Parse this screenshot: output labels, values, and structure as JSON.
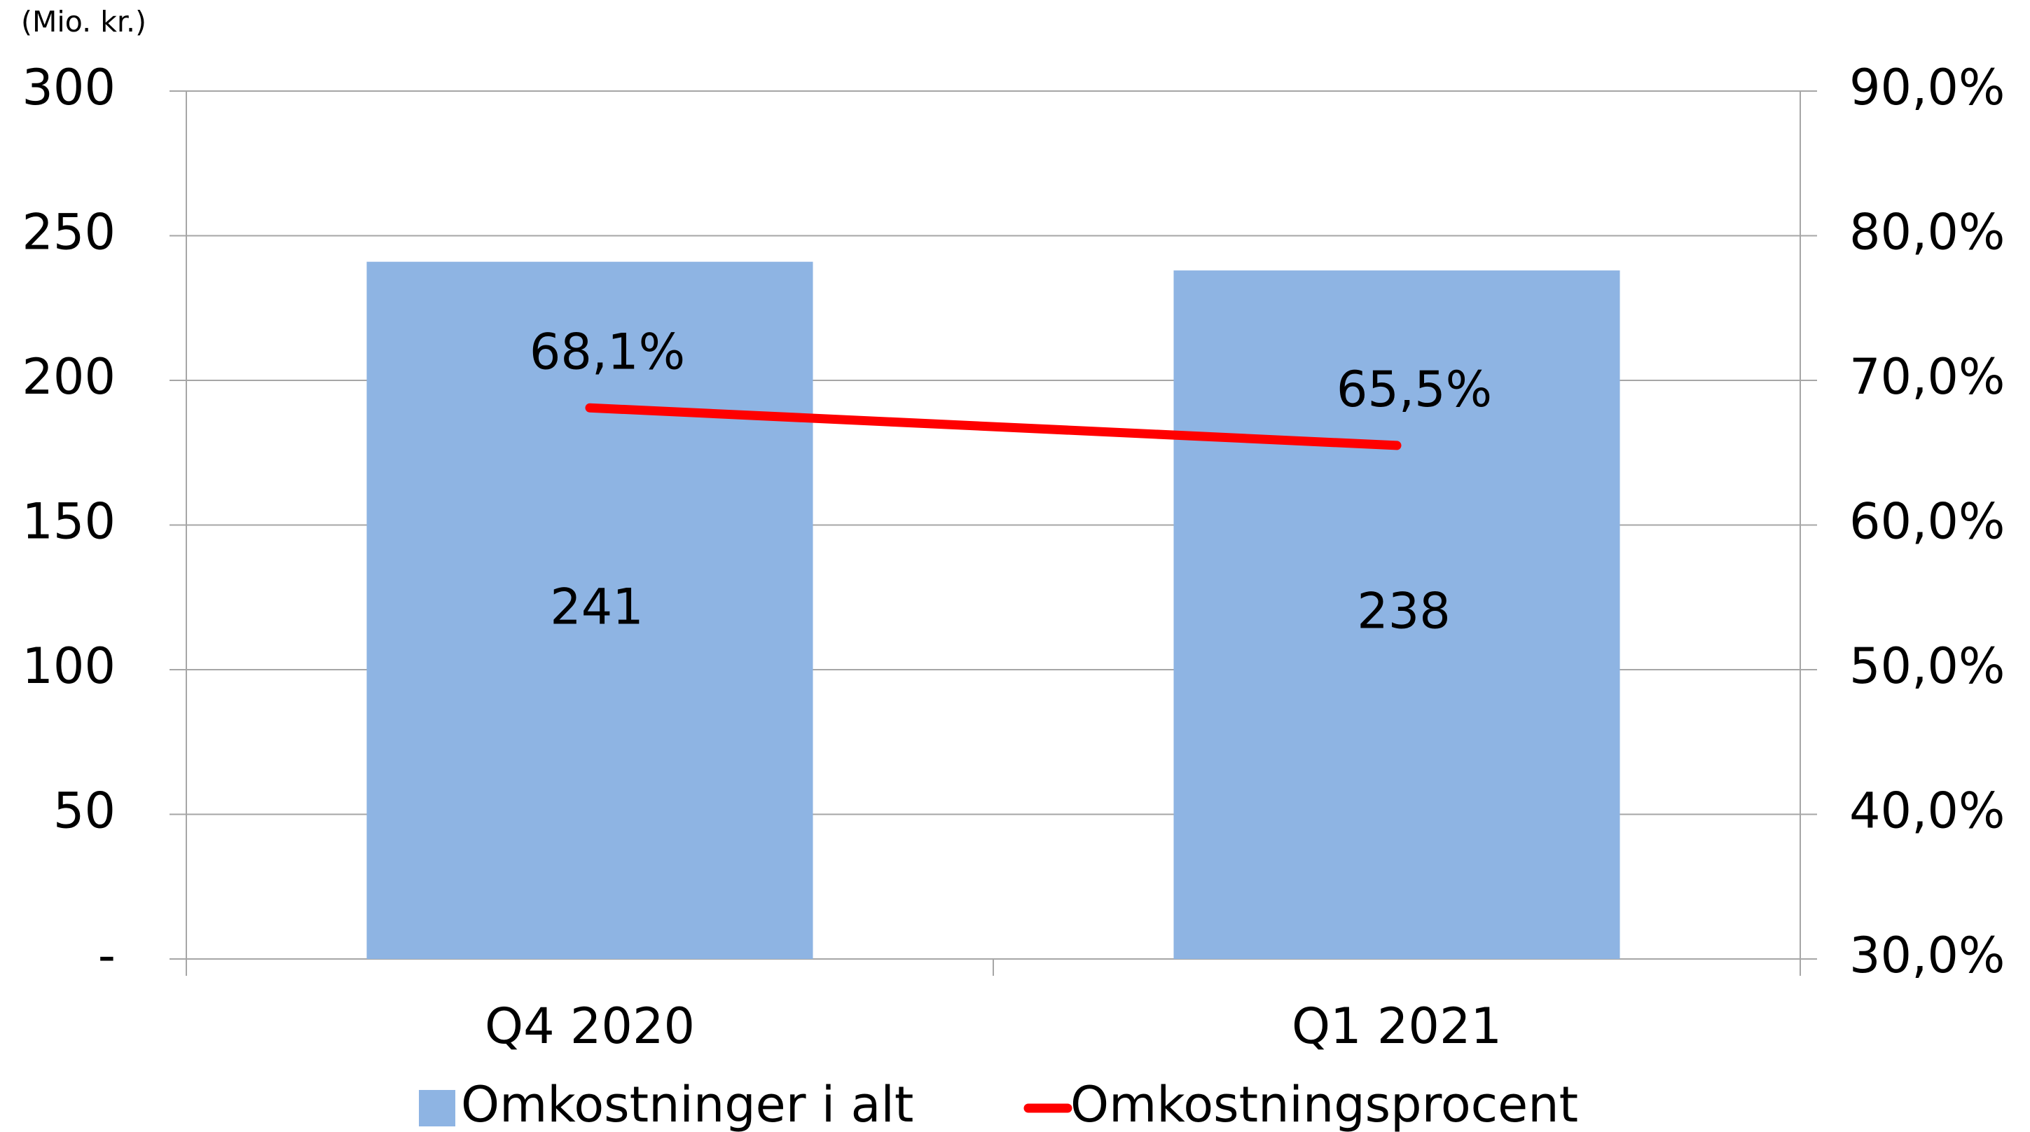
{
  "chart_data": {
    "type": "bar_line",
    "unit_label": "(Mio. kr.)",
    "categories": [
      "Q4 2020",
      "Q1 2021"
    ],
    "series": [
      {
        "name": "Omkostninger i alt",
        "type": "bar",
        "color": "#8eb4e3",
        "values": [
          241,
          238
        ]
      },
      {
        "name": "Omkostningsprocent",
        "type": "line",
        "axis": "y2",
        "color": "#ff0000",
        "values": [
          68.1,
          65.5
        ],
        "value_labels": [
          "68,1%",
          "65,5%"
        ]
      }
    ],
    "ylim": [
      0,
      300
    ],
    "yticks": [
      {
        "value": 0,
        "label": "-"
      },
      50,
      100,
      150,
      200,
      250,
      300
    ],
    "y2lim": [
      30,
      90
    ],
    "y2ticks": [
      {
        "value": 30,
        "label": "30,0%"
      },
      {
        "value": 40,
        "label": "40,0%"
      },
      {
        "value": 50,
        "label": "50,0%"
      },
      {
        "value": 60,
        "label": "60,0%"
      },
      {
        "value": 70,
        "label": "70,0%"
      },
      {
        "value": 80,
        "label": "80,0%"
      },
      {
        "value": 90,
        "label": "90,0%"
      }
    ],
    "grid": true,
    "legend": "bottom"
  }
}
